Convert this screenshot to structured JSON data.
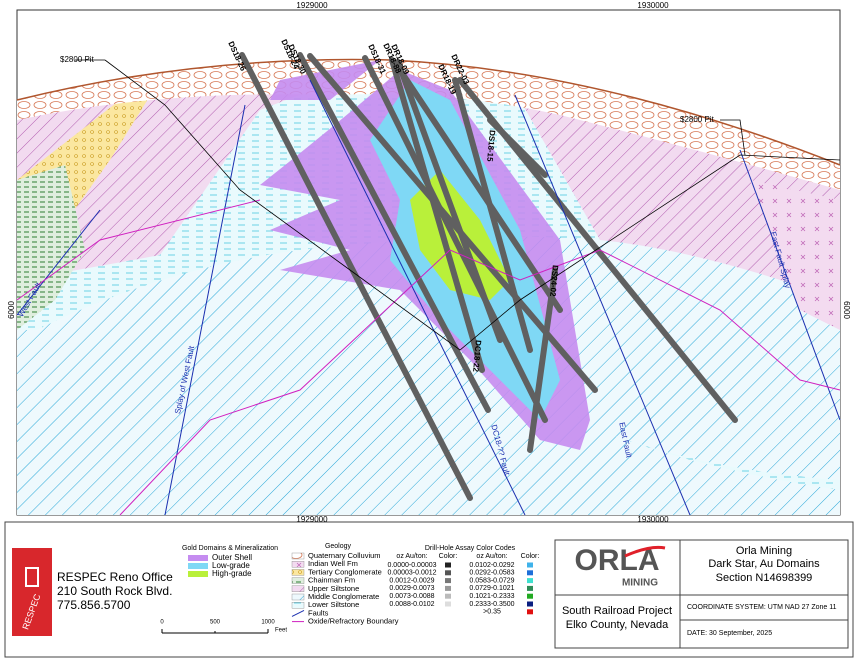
{
  "map": {
    "x_labels": [
      "1929000",
      "1930000",
      "1929000",
      "1930000"
    ],
    "y_labels": [
      "6000",
      "6000"
    ],
    "pit_labels": [
      "$2800 Pit",
      "$2800 Pit"
    ],
    "hole_labels": [
      "DS18-26",
      "DS18-24",
      "DS18-30",
      "DS18-31",
      "DR18-88",
      "DR18-09",
      "DR22-03",
      "DR18-19",
      "DS18-15",
      "DS24-02",
      "DC18-22"
    ],
    "fault_labels": [
      "West Fault",
      "Splay of West Fault",
      "DC18-?? Fault",
      "East Fault",
      "East Fault Splay"
    ]
  },
  "legend_gold": {
    "title": "Gold Domains & Mineralization",
    "items": [
      {
        "label": "Outer Shell",
        "color": "#c58cf0"
      },
      {
        "label": "Low-grade",
        "color": "#7fd8f5"
      },
      {
        "label": "High-grade",
        "color": "#b9f03a"
      }
    ]
  },
  "legend_geology": {
    "title": "Geology",
    "items": [
      {
        "label": "Quaternary Colluvium",
        "pattern": "coll"
      },
      {
        "label": "Indian Well Fm",
        "pattern": "iw"
      },
      {
        "label": "Tertiary Conglomerate",
        "pattern": "tc"
      },
      {
        "label": "Chainman Fm",
        "pattern": "ch"
      },
      {
        "label": "Upper Siltstone",
        "pattern": "us"
      },
      {
        "label": "Middle Conglomerate",
        "pattern": "mc"
      },
      {
        "label": "Lower Siltstone",
        "pattern": "ls"
      },
      {
        "label": "Faults",
        "pattern": "fault"
      },
      {
        "label": "Oxide/Refractory Boundary",
        "pattern": "oxide"
      }
    ]
  },
  "assay": {
    "title": "Drill-Hole Assay Color Codes",
    "headers": [
      "oz Au/ton:",
      "Color:",
      "oz Au/ton:",
      "Color:"
    ],
    "left": [
      {
        "range": "0.0000-0.00003",
        "color": "#222222"
      },
      {
        "range": "0.00003-0.0012",
        "color": "#555555"
      },
      {
        "range": "0.0012-0.0029",
        "color": "#777777"
      },
      {
        "range": "0.0029-0.0073",
        "color": "#999999"
      },
      {
        "range": "0.0073-0.0088",
        "color": "#bbbbbb"
      },
      {
        "range": "0.0088-0.0102",
        "color": "#dddddd"
      }
    ],
    "right": [
      {
        "range": "0.0102-0.0292",
        "color": "#3fb2ea"
      },
      {
        "range": "0.0292-0.0583",
        "color": "#1e6fd9"
      },
      {
        "range": "0.0583-0.0729",
        "color": "#3ee0d0"
      },
      {
        "range": "0.0729-0.1021",
        "color": "#2e8b57"
      },
      {
        "range": "0.1021-0.2333",
        "color": "#22aa22"
      },
      {
        "range": "0.2333-0.3500",
        "color": "#0a1f80"
      },
      {
        "range": ">0.35",
        "color": "#e01010"
      }
    ]
  },
  "scale": {
    "ticks": [
      "0",
      "500",
      "1000"
    ],
    "unit": "Feet"
  },
  "respec": {
    "logo": "RESPEC",
    "office": "RESPEC Reno Office",
    "address": "210 South Rock Blvd.",
    "phone": "775.856.5700"
  },
  "title_block": {
    "logo_top": "ORLA",
    "logo_bottom": "MINING",
    "company": "Orla Mining",
    "subtitle": "Dark Star, Au Domains",
    "section": "Section N14698399",
    "project": "South Railroad Project",
    "county": "Elko County, Nevada",
    "coords": "COORDINATE SYSTEM: UTM NAD 27 Zone 11",
    "date": "DATE: 30 September, 2025"
  }
}
